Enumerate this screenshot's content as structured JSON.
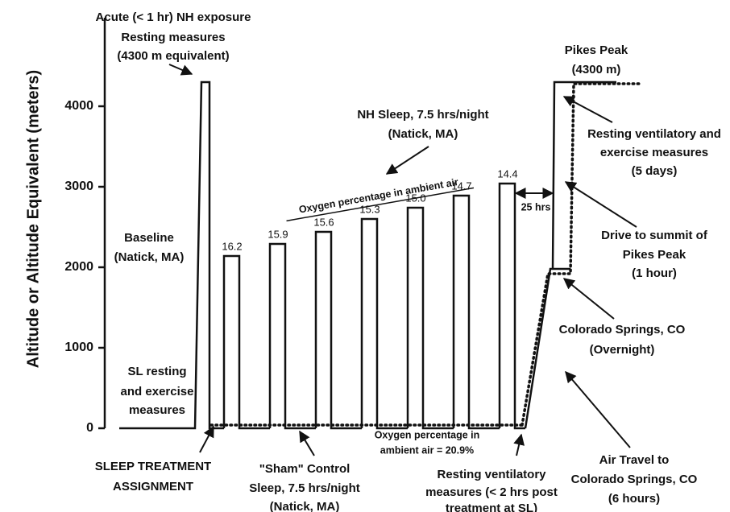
{
  "chart_data": {
    "type": "line",
    "ylabel": "Altitude or Altitude Equivalent (meters)",
    "ylim": [
      0,
      5100
    ],
    "yticks": [
      0,
      1000,
      2000,
      3000,
      4000
    ],
    "acute_peak": 4300,
    "sleep_bars": {
      "values": [
        2140,
        2290,
        2440,
        2600,
        2740,
        2890,
        3040
      ],
      "value_labels": [
        "16.2",
        "15.9",
        "15.6",
        "15.3",
        "15.0",
        "14.7",
        "14.4"
      ]
    },
    "colorado_springs": 1980,
    "pikes_peak": 4300,
    "oxygen_trend_label": "Oxygen percentage in ambient air",
    "interval_label": "25 hrs",
    "annotations": [
      {
        "lines": [
          "Acute (< 1 hr) NH exposure",
          "Resting measures",
          "(4300 m equivalent)"
        ]
      },
      {
        "lines": [
          "Baseline",
          "(Natick, MA)"
        ]
      },
      {
        "lines": [
          "SL resting",
          "and exercise",
          "measures"
        ]
      },
      {
        "lines": [
          "SLEEP TREATMENT",
          "ASSIGNMENT"
        ]
      },
      {
        "lines": [
          "\"Sham\" Control",
          "Sleep, 7.5 hrs/night",
          "(Natick, MA)"
        ]
      },
      {
        "lines": [
          "Oxygen percentage in",
          "ambient air = 20.9%"
        ]
      },
      {
        "lines": [
          "Resting ventilatory",
          "measures (< 2 hrs post",
          "treatment at SL)"
        ]
      },
      {
        "lines": [
          "NH Sleep, 7.5 hrs/night",
          "(Natick, MA)"
        ]
      },
      {
        "lines": [
          "Pikes Peak",
          "(4300 m)"
        ]
      },
      {
        "lines": [
          "Resting ventilatory and",
          "exercise measures",
          "(5 days)"
        ]
      },
      {
        "lines": [
          "Drive to summit of",
          "Pikes Peak",
          "(1 hour)"
        ]
      },
      {
        "lines": [
          "Colorado Springs, CO",
          "(Overnight)"
        ]
      },
      {
        "lines": [
          "Air Travel to",
          "Colorado Springs, CO",
          "(6 hours)"
        ]
      }
    ]
  }
}
